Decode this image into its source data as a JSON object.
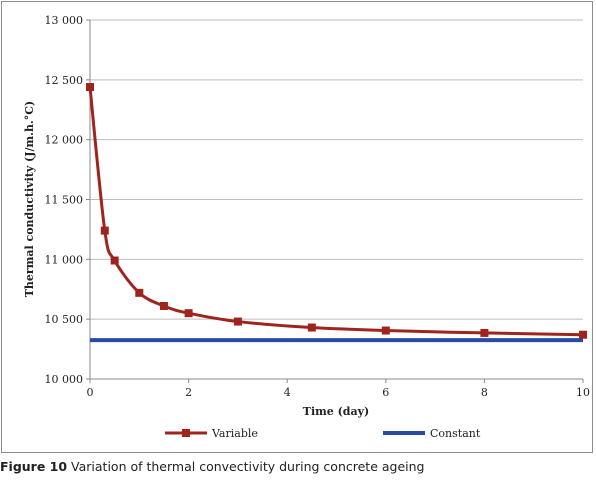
{
  "chart_data": {
    "type": "line",
    "xlabel": "Time (day)",
    "ylabel": "Thermal conductivity (J/m.h.°C)",
    "xlim": [
      0,
      10
    ],
    "ylim": [
      10000,
      13000
    ],
    "x_ticks": [
      "0",
      "2",
      "4",
      "6",
      "8",
      "10"
    ],
    "y_ticks": [
      "10 000",
      "10 500",
      "11 000",
      "11 500",
      "12 000",
      "12 500",
      "13 000"
    ],
    "grid": "horizontal",
    "legend_position": "bottom",
    "series": [
      {
        "name": "Variable",
        "color": "#a0241e",
        "marker": "square",
        "x": [
          0,
          0.3,
          0.5,
          1,
          1.5,
          2,
          3,
          4.5,
          6,
          8,
          10
        ],
        "y": [
          12440,
          11240,
          10990,
          10720,
          10610,
          10550,
          10480,
          10430,
          10405,
          10385,
          10370
        ]
      },
      {
        "name": "Constant",
        "color": "#2a4ba3",
        "marker": "none",
        "x": [
          0,
          10
        ],
        "y": [
          10325,
          10325
        ]
      }
    ]
  },
  "caption": {
    "label": "Figure 10",
    "text": " Variation of thermal convectivity during concrete ageing"
  }
}
